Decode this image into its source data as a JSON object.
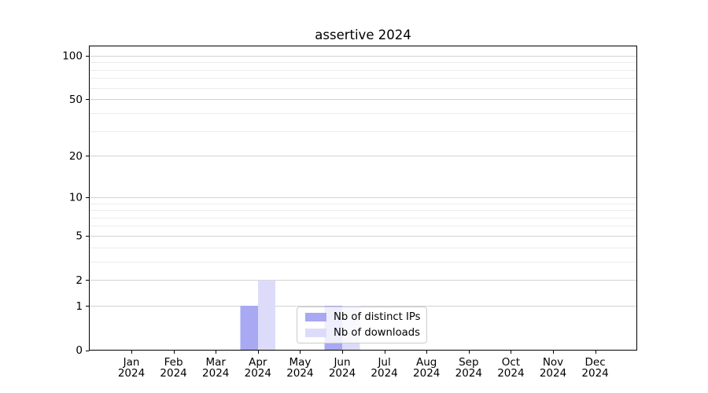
{
  "figure": {
    "title": "assertive 2024"
  },
  "chart_data": {
    "type": "bar",
    "title": "assertive 2024",
    "months": [
      "Jan",
      "Feb",
      "Mar",
      "Apr",
      "May",
      "Jun",
      "Jul",
      "Aug",
      "Sep",
      "Oct",
      "Nov",
      "Dec"
    ],
    "year": "2024",
    "categories": [
      "Jan 2024",
      "Feb 2024",
      "Mar 2024",
      "Apr 2024",
      "May 2024",
      "Jun 2024",
      "Jul 2024",
      "Aug 2024",
      "Sep 2024",
      "Oct 2024",
      "Nov 2024",
      "Dec 2024"
    ],
    "series": [
      {
        "name": "Nb of distinct IPs",
        "color": "#a8a8f3",
        "values": [
          0,
          0,
          0,
          1,
          0,
          1,
          0,
          0,
          0,
          0,
          0,
          0
        ]
      },
      {
        "name": "Nb of downloads",
        "color": "#dcdcfa",
        "values": [
          0,
          0,
          0,
          2,
          0,
          1,
          0,
          0,
          0,
          0,
          0,
          0
        ]
      }
    ],
    "xlabel": "",
    "ylabel": "",
    "y_axis": {
      "scale": "log(1+y)",
      "major_ticks": [
        0,
        1,
        2,
        5,
        10,
        20,
        50,
        100
      ],
      "minor_gridlines": [
        3,
        4,
        6,
        7,
        8,
        9,
        30,
        40,
        60,
        70,
        80,
        90
      ],
      "ylim": [
        0,
        100
      ]
    },
    "grid": true,
    "legend_position": "lower center",
    "colors": {
      "major_grid": "#d2d2d2",
      "minor_grid": "#ebebeb",
      "axis": "#000000",
      "text": "#000000",
      "background": "#ffffff"
    }
  }
}
